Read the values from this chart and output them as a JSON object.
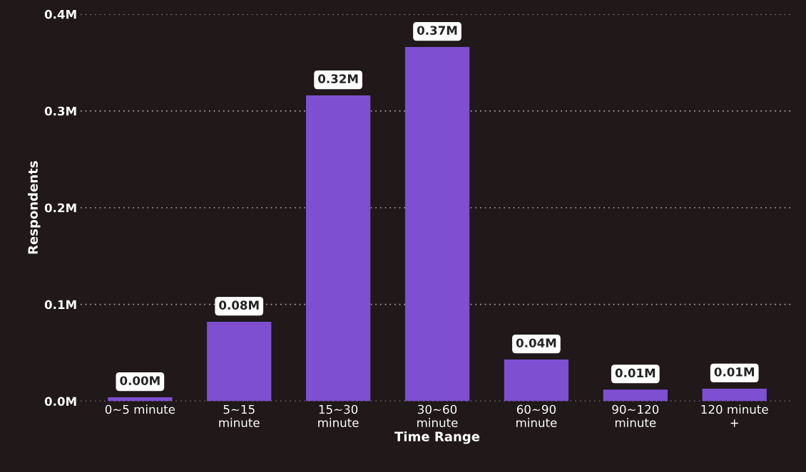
{
  "chart_data": {
    "type": "bar",
    "xlabel": "Time Range",
    "ylabel": "Respondents",
    "categories": [
      "0~5 minute",
      "5~15\nminute",
      "15~30\nminute",
      "30~60\nminute",
      "60~90\nminute",
      "90~120\nminute",
      "120 minute\n+"
    ],
    "values": [
      0.004,
      0.082,
      0.316,
      0.366,
      0.043,
      0.012,
      0.013
    ],
    "value_labels": [
      "0.00M",
      "0.08M",
      "0.32M",
      "0.37M",
      "0.04M",
      "0.01M",
      "0.01M"
    ],
    "color": "#7e4fd0",
    "ylim": [
      0,
      0.4
    ],
    "yticks": [
      {
        "value": 0,
        "label": "0.0M"
      },
      {
        "value": 0.1,
        "label": "0.1M"
      },
      {
        "value": 0.2,
        "label": "0.2M"
      },
      {
        "value": 0.3,
        "label": "0.3M"
      },
      {
        "value": 0.4,
        "label": "0.4M"
      }
    ],
    "grid": "y"
  }
}
